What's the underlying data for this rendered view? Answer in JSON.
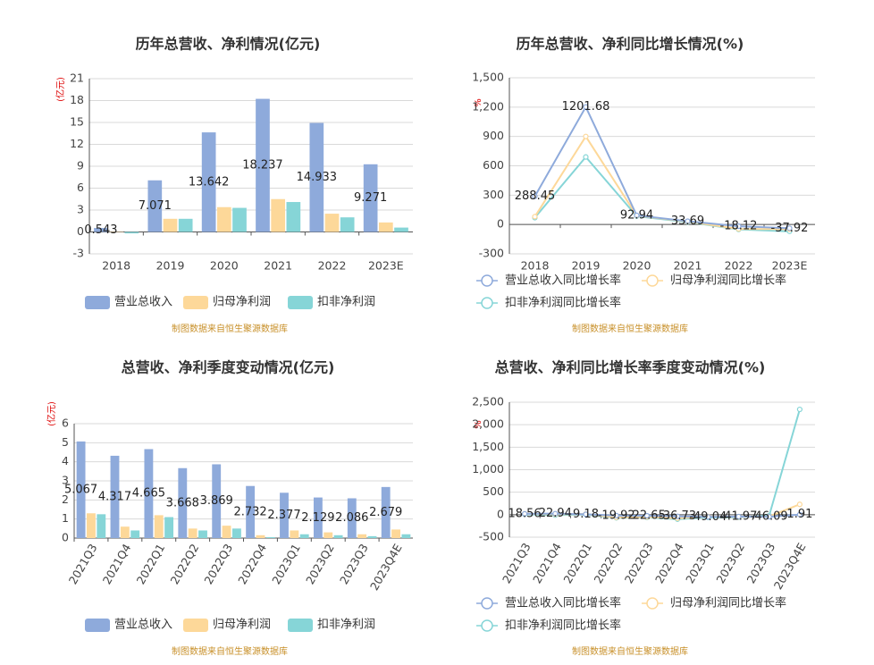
{
  "chart_data": [
    {
      "type": "bar",
      "title": "历年总营收、净利情况(亿元)",
      "y_unit": "(亿元)",
      "categories": [
        "2018",
        "2019",
        "2020",
        "2021",
        "2022",
        "2023E"
      ],
      "series": [
        {
          "name": "营业总收入",
          "color": "#8eaadb",
          "values": [
            0.543,
            7.071,
            13.642,
            18.237,
            14.933,
            9.271
          ]
        },
        {
          "name": "归母净利润",
          "color": "#fdd899",
          "values": [
            0.05,
            1.8,
            3.4,
            4.5,
            2.5,
            1.3
          ]
        },
        {
          "name": "扣非净利润",
          "color": "#86d5d7",
          "values": [
            -0.2,
            1.8,
            3.3,
            4.1,
            2.0,
            0.6
          ]
        }
      ],
      "ylim": [
        -3,
        21
      ],
      "yticks": [
        -3,
        0,
        3,
        6,
        9,
        12,
        15,
        18,
        21
      ],
      "grid": true,
      "source": "制图数据来自恒生聚源数据库"
    },
    {
      "type": "line",
      "title": "历年总营收、净利同比增长情况(%)",
      "y_unit": "%",
      "categories": [
        "2018",
        "2019",
        "2020",
        "2021",
        "2022",
        "2023E"
      ],
      "series": [
        {
          "name": "营业总收入同比增长率",
          "color": "#8eaadb",
          "values": [
            288.45,
            1201.68,
            92.94,
            33.69,
            -18.12,
            -37.92
          ]
        },
        {
          "name": "归母净利润同比增长率",
          "color": "#fdd899",
          "values": [
            80,
            900,
            90,
            30,
            -45,
            -48
          ]
        },
        {
          "name": "扣非净利润同比增长率",
          "color": "#86d5d7",
          "values": [
            70,
            690,
            85,
            25,
            -50,
            -70
          ]
        }
      ],
      "ylim": [
        -300,
        1500
      ],
      "yticks": [
        -300,
        0,
        300,
        600,
        900,
        {
          "value": 1200,
          "label": "1,200"
        },
        {
          "value": 1500,
          "label": "1,500"
        }
      ],
      "grid": true,
      "source": "制图数据来自恒生聚源数据库"
    },
    {
      "type": "bar",
      "title": "总营收、净利季度变动情况(亿元)",
      "y_unit": "(亿元)",
      "categories": [
        "2021Q3",
        "2021Q4",
        "2022Q1",
        "2022Q2",
        "2022Q3",
        "2022Q4",
        "2023Q1",
        "2023Q2",
        "2023Q3",
        "2023Q4E"
      ],
      "series": [
        {
          "name": "营业总收入",
          "color": "#8eaadb",
          "values": [
            5.067,
            4.317,
            4.665,
            3.668,
            3.869,
            2.732,
            2.377,
            2.129,
            2.086,
            2.679
          ]
        },
        {
          "name": "归母净利润",
          "color": "#fdd899",
          "values": [
            1.3,
            0.6,
            1.2,
            0.5,
            0.65,
            0.15,
            0.4,
            0.3,
            0.2,
            0.45
          ]
        },
        {
          "name": "扣非净利润",
          "color": "#86d5d7",
          "values": [
            1.25,
            0.4,
            1.1,
            0.4,
            0.5,
            0.05,
            0.2,
            0.15,
            0.1,
            0.2
          ]
        }
      ],
      "ylim": [
        0,
        6
      ],
      "yticks": [
        0,
        1,
        2,
        3,
        4,
        5,
        6
      ],
      "grid": true,
      "source": "制图数据来自恒生聚源数据库"
    },
    {
      "type": "line",
      "title": "总营收、净利同比增长率季度变动情况(%)",
      "y_unit": "%",
      "categories": [
        "2021Q3",
        "2021Q4",
        "2022Q1",
        "2022Q2",
        "2022Q3",
        "2022Q4",
        "2023Q1",
        "2023Q2",
        "2023Q3",
        "2023Q4E"
      ],
      "series": [
        {
          "name": "营业总收入同比增长率",
          "color": "#8eaadb",
          "values": [
            18.56,
            22.94,
            9.18,
            -19.92,
            -22.65,
            -36.73,
            -49.04,
            -41.97,
            -46.09,
            1.91
          ]
        },
        {
          "name": "归母净利润同比增长率",
          "color": "#fdd899",
          "values": [
            20,
            10,
            15,
            -60,
            -50,
            -80,
            -40,
            -50,
            -40,
            230
          ]
        },
        {
          "name": "扣非净利润同比增长率",
          "color": "#86d5d7",
          "values": [
            10,
            -10,
            5,
            -70,
            -60,
            -100,
            -60,
            -60,
            -20,
            2340
          ]
        }
      ],
      "ylim": [
        -500,
        2500
      ],
      "yticks": [
        -500,
        0,
        500,
        {
          "value": 1000,
          "label": "1,000"
        },
        {
          "value": 1500,
          "label": "1,500"
        },
        {
          "value": 2000,
          "label": "2,000"
        },
        {
          "value": 2500,
          "label": "2,500"
        }
      ],
      "grid": true,
      "source": "制图数据来自恒生聚源数据库"
    }
  ]
}
